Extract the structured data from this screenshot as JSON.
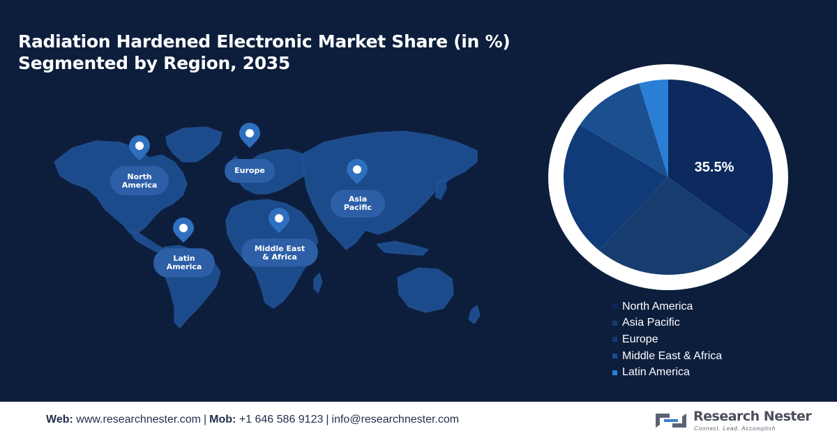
{
  "title": {
    "line1": "Radiation Hardened Electronic Market Share (in %)",
    "line2": "Segmented by Region, 2035"
  },
  "map": {
    "pins": [
      {
        "label": "North\nAmerica",
        "name": "north-america"
      },
      {
        "label": "Europe",
        "name": "europe"
      },
      {
        "label": "Asia\nPacific",
        "name": "asia-pacific"
      },
      {
        "label": "Latin\nAmerica",
        "name": "latin-america"
      },
      {
        "label": "Middle East\n& Africa",
        "name": "middle-east-africa"
      }
    ]
  },
  "chart_data": {
    "type": "pie",
    "title": "Radiation Hardened Electronic Market Share (in %) Segmented by Region, 2035",
    "categories": [
      "North America",
      "Asia Pacific",
      "Europe",
      "Middle East & Africa",
      "Latin America"
    ],
    "values": [
      35.5,
      26.0,
      22.5,
      11.5,
      4.5
    ],
    "colors": [
      "#0c2a5e",
      "#173d6e",
      "#113a78",
      "#1b4f8f",
      "#2a7ed6"
    ],
    "data_labels": [
      "35.5%",
      "",
      "",
      "",
      ""
    ],
    "legend_position": "bottom-right"
  },
  "footer": {
    "web_label": "Web:",
    "web": "www.researchnester.com",
    "mob_label": "Mob:",
    "mob": "+1 646 586 9123",
    "email": "info@researchnester.com",
    "brand": "Research Nester",
    "tagline": "Connect. Lead. Accomplish"
  }
}
